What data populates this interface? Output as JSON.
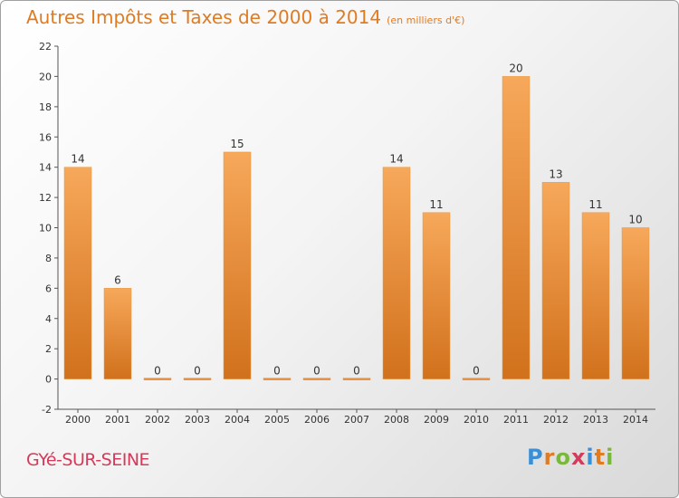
{
  "title": "Autres Impôts et Taxes de 2000 à 2014",
  "subtitle": "(en milliers d'€)",
  "city": "GYé-SUR-SEINE",
  "logo": {
    "text": "Proxiti",
    "letter_colors": [
      "#3a8fd6",
      "#e07b22",
      "#7ab83a",
      "#d63a5a",
      "#3a8fd6",
      "#e07b22",
      "#7ab83a"
    ]
  },
  "colors": {
    "accent": "#e07b22",
    "bar_top": "#f7a85a",
    "bar_bottom": "#d1711c",
    "city": "#d63a5a"
  },
  "chart_data": {
    "type": "bar",
    "categories": [
      "2000",
      "2001",
      "2002",
      "2003",
      "2004",
      "2005",
      "2006",
      "2007",
      "2008",
      "2009",
      "2010",
      "2011",
      "2012",
      "2013",
      "2014"
    ],
    "values": [
      14,
      6,
      0,
      0,
      15,
      0,
      0,
      0,
      14,
      11,
      0,
      20,
      13,
      11,
      10
    ],
    "ylim": [
      -2,
      22
    ],
    "yticks": [
      -2,
      0,
      2,
      4,
      6,
      8,
      10,
      12,
      14,
      16,
      18,
      20,
      22
    ],
    "grid": false,
    "data_labels": true
  }
}
